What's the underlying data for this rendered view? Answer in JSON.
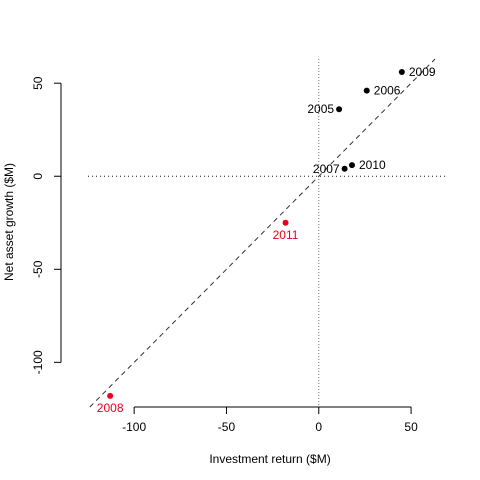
{
  "chart_data": {
    "type": "scatter",
    "title": "",
    "xlabel": "Investment return ($M)",
    "ylabel": "Net asset growth ($M)",
    "xlim": [
      -125,
      70
    ],
    "ylim": [
      -124,
      63
    ],
    "xticks": [
      -100,
      -50,
      0,
      50
    ],
    "yticks": [
      -100,
      -50,
      0,
      50
    ],
    "reference_lines": {
      "vertical_x": 0,
      "horizontal_y": 0,
      "diagonal": "y = x"
    },
    "colors": {
      "normal": "#000000",
      "highlight": "#e8001c"
    },
    "points": [
      {
        "label": "2005",
        "x": 11,
        "y": 36,
        "highlight": false,
        "label_pos": "left"
      },
      {
        "label": "2006",
        "x": 26,
        "y": 46,
        "highlight": false,
        "label_pos": "right"
      },
      {
        "label": "2007",
        "x": 14,
        "y": 4,
        "highlight": false,
        "label_pos": "left"
      },
      {
        "label": "2008",
        "x": -113,
        "y": -118,
        "highlight": true,
        "label_pos": "below"
      },
      {
        "label": "2009",
        "x": 45,
        "y": 56,
        "highlight": false,
        "label_pos": "right"
      },
      {
        "label": "2010",
        "x": 18,
        "y": 6,
        "highlight": false,
        "label_pos": "right"
      },
      {
        "label": "2011",
        "x": -18,
        "y": -25,
        "highlight": true,
        "label_pos": "below"
      }
    ]
  }
}
